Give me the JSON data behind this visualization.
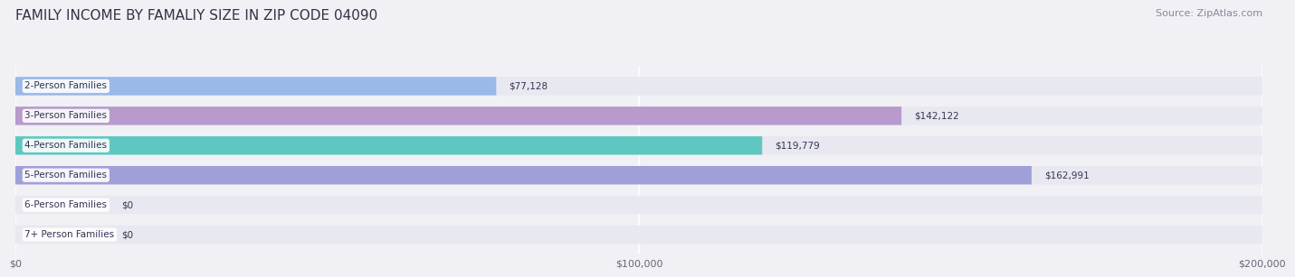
{
  "title": "FAMILY INCOME BY FAMALIY SIZE IN ZIP CODE 04090",
  "source": "Source: ZipAtlas.com",
  "categories": [
    "2-Person Families",
    "3-Person Families",
    "4-Person Families",
    "5-Person Families",
    "6-Person Families",
    "7+ Person Families"
  ],
  "values": [
    77128,
    142122,
    119779,
    162991,
    0,
    0
  ],
  "bar_colors": [
    "#9ab8e8",
    "#b89acc",
    "#5ec8c0",
    "#a0a0d8",
    "#f4a0b0",
    "#f5d0a0"
  ],
  "value_labels": [
    "$77,128",
    "$142,122",
    "$119,779",
    "$162,991",
    "$0",
    "$0"
  ],
  "xlim": [
    0,
    200000
  ],
  "xticks": [
    0,
    100000,
    200000
  ],
  "xticklabels": [
    "$0",
    "$100,000",
    "$200,000"
  ],
  "background_color": "#f0f0f5",
  "bar_background_color": "#e8e8f0",
  "title_fontsize": 11,
  "bar_height": 0.62,
  "figsize": [
    14.06,
    3.05
  ]
}
